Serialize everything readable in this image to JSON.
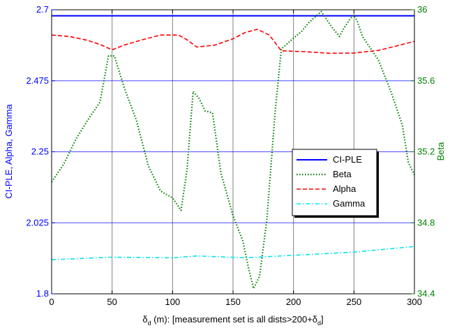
{
  "chart_data": {
    "type": "line",
    "xlabel_main": "δ",
    "xlabel_sub": "d",
    "xlabel_rest": " (m): [measurement set is all dists>200+δ",
    "xlabel_sub2": "d",
    "xlabel_end": "]",
    "ylabel_left": "CI-PLE, Alpha, Gamma",
    "ylabel_right": "Beta",
    "xlim": [
      0,
      300
    ],
    "ylim_left": [
      1.8,
      2.7
    ],
    "ylim_right": [
      34.4,
      36
    ],
    "xticks": [
      "0",
      "50",
      "100",
      "150",
      "200",
      "250",
      "300"
    ],
    "yticks_left": [
      "1.8",
      "2.025",
      "2.25",
      "2.475",
      "2.7"
    ],
    "yticks_right": [
      "34.4",
      "34.8",
      "35.2",
      "35.6",
      "36"
    ],
    "grid": true,
    "legend_position": "right-middle",
    "colors": {
      "left_axis": "#0000ff",
      "right_axis": "#008000",
      "axes": "#000000",
      "grid": "#808080"
    },
    "series": [
      {
        "name": "CI-PLE",
        "axis": "left",
        "color": "#0000ff",
        "style": "solid",
        "x": [
          0,
          20,
          40,
          60,
          80,
          100,
          120,
          140,
          160,
          180,
          200,
          220,
          240,
          260,
          280,
          300
        ],
        "y": [
          2.681,
          2.681,
          2.681,
          2.681,
          2.681,
          2.681,
          2.681,
          2.681,
          2.681,
          2.681,
          2.681,
          2.681,
          2.681,
          2.681,
          2.681,
          2.681
        ]
      },
      {
        "name": "Beta",
        "axis": "right",
        "color": "#008000",
        "style": "dotted",
        "x": [
          0,
          10,
          20,
          30,
          40,
          47,
          52,
          60,
          70,
          80,
          90,
          100,
          107,
          112,
          117,
          122,
          127,
          133,
          140,
          150,
          158,
          163,
          167,
          172,
          178,
          185,
          190,
          200,
          207,
          213,
          218,
          223,
          227,
          232,
          238,
          242,
          247,
          250,
          253,
          257,
          262,
          270,
          280,
          290,
          295,
          300
        ],
        "y": [
          35.03,
          35.13,
          35.27,
          35.38,
          35.48,
          35.74,
          35.74,
          35.56,
          35.38,
          35.12,
          34.98,
          34.94,
          34.87,
          35.1,
          35.54,
          35.5,
          35.43,
          35.42,
          35.08,
          34.84,
          34.7,
          34.54,
          34.43,
          34.5,
          34.82,
          35.44,
          35.78,
          35.84,
          35.88,
          35.93,
          35.96,
          35.99,
          35.95,
          35.9,
          35.85,
          35.9,
          35.95,
          35.97,
          35.93,
          35.85,
          35.8,
          35.72,
          35.55,
          35.35,
          35.14,
          35.07
        ]
      },
      {
        "name": "Alpha",
        "axis": "left",
        "color": "#ff0000",
        "style": "dashed",
        "x": [
          0,
          15,
          30,
          40,
          50,
          60,
          75,
          90,
          105,
          112,
          120,
          135,
          150,
          160,
          170,
          180,
          190,
          210,
          230,
          250,
          270,
          285,
          300
        ],
        "y": [
          2.62,
          2.615,
          2.603,
          2.59,
          2.573,
          2.588,
          2.605,
          2.62,
          2.62,
          2.605,
          2.582,
          2.588,
          2.608,
          2.628,
          2.638,
          2.62,
          2.57,
          2.567,
          2.562,
          2.563,
          2.571,
          2.585,
          2.6
        ]
      },
      {
        "name": "Gamma",
        "axis": "left",
        "color": "#00e5ee",
        "style": "dashdot",
        "x": [
          0,
          50,
          100,
          120,
          160,
          200,
          250,
          300
        ],
        "y": [
          1.908,
          1.916,
          1.914,
          1.92,
          1.914,
          1.922,
          1.932,
          1.95
        ]
      }
    ]
  }
}
